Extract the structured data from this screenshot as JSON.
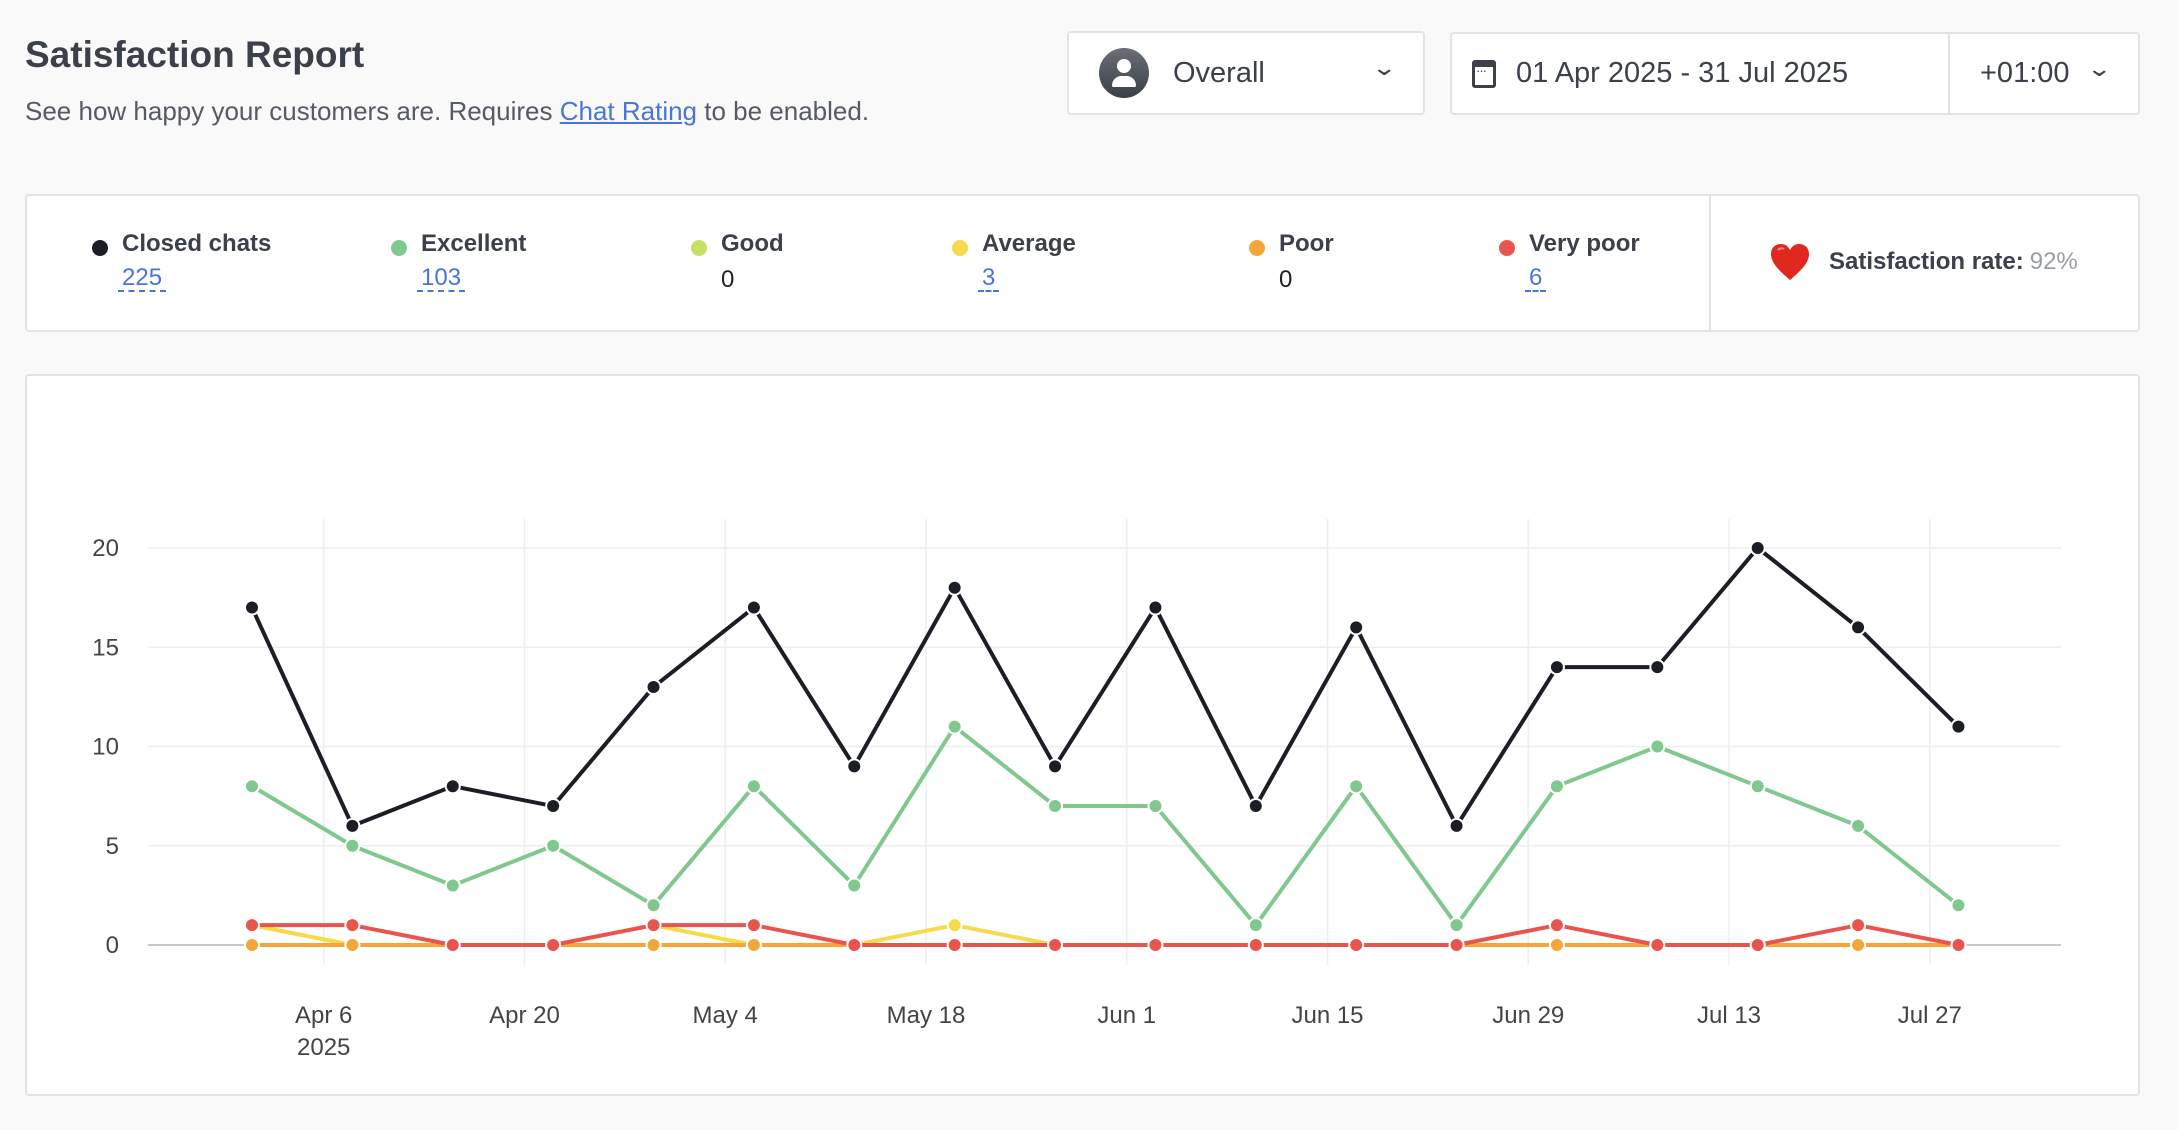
{
  "header": {
    "title": "Satisfaction Report",
    "subtitle_before": "See how happy your customers are. Requires ",
    "subtitle_link": "Chat Rating",
    "subtitle_after": " to be enabled."
  },
  "filters": {
    "agent": "Overall",
    "date_range": "01 Apr 2025 - 31 Jul 2025",
    "timezone": "+01:00"
  },
  "stats": [
    {
      "label": "Closed chats",
      "value": "225",
      "link": true,
      "color": "#1c1e26"
    },
    {
      "label": "Excellent",
      "value": "103",
      "link": true,
      "color": "#80c88e"
    },
    {
      "label": "Good",
      "value": "0",
      "link": false,
      "color": "#c5e063"
    },
    {
      "label": "Average",
      "value": "3",
      "link": true,
      "color": "#f7da4b"
    },
    {
      "label": "Poor",
      "value": "0",
      "link": false,
      "color": "#f3a73b"
    },
    {
      "label": "Very poor",
      "value": "6",
      "link": true,
      "color": "#e8554e"
    }
  ],
  "satisfaction": {
    "label": "Satisfaction rate:",
    "value": "92%",
    "icon": "heart-icon"
  },
  "chart_data": {
    "type": "line",
    "x": [
      "2025-04-01",
      "2025-04-08",
      "2025-04-15",
      "2025-04-22",
      "2025-04-29",
      "2025-05-06",
      "2025-05-13",
      "2025-05-20",
      "2025-05-27",
      "2025-06-03",
      "2025-06-10",
      "2025-06-17",
      "2025-06-24",
      "2025-07-01",
      "2025-07-08",
      "2025-07-15",
      "2025-07-22",
      "2025-07-29"
    ],
    "x_ticks": [
      "Apr 6",
      "Apr 20",
      "May 4",
      "May 18",
      "Jun 1",
      "Jun 15",
      "Jun 29",
      "Jul 13",
      "Jul 27"
    ],
    "x_tick_dates": [
      "2025-04-06",
      "2025-04-20",
      "2025-05-04",
      "2025-05-18",
      "2025-06-01",
      "2025-06-15",
      "2025-06-29",
      "2025-07-13",
      "2025-07-27"
    ],
    "x_year_label": "2025",
    "y_ticks": [
      0,
      5,
      10,
      15,
      20
    ],
    "ylim": [
      0,
      20
    ],
    "grid": true,
    "series": [
      {
        "name": "Closed chats",
        "color": "#1c1e26",
        "values": [
          17,
          6,
          8,
          7,
          13,
          17,
          9,
          18,
          9,
          17,
          7,
          16,
          6,
          14,
          14,
          20,
          16,
          11
        ]
      },
      {
        "name": "Excellent",
        "color": "#80c88e",
        "values": [
          8,
          5,
          3,
          5,
          2,
          8,
          3,
          11,
          7,
          7,
          1,
          8,
          1,
          8,
          10,
          8,
          6,
          2
        ]
      },
      {
        "name": "Good",
        "color": "#c5e063",
        "values": [
          0,
          0,
          0,
          0,
          0,
          0,
          0,
          0,
          0,
          0,
          0,
          0,
          0,
          0,
          0,
          0,
          0,
          0
        ]
      },
      {
        "name": "Average",
        "color": "#f7da4b",
        "values": [
          1,
          0,
          0,
          0,
          1,
          0,
          0,
          1,
          0,
          0,
          0,
          0,
          0,
          0,
          0,
          0,
          0,
          0
        ]
      },
      {
        "name": "Poor",
        "color": "#f3a73b",
        "values": [
          0,
          0,
          0,
          0,
          0,
          0,
          0,
          0,
          0,
          0,
          0,
          0,
          0,
          0,
          0,
          0,
          0,
          0
        ]
      },
      {
        "name": "Very poor",
        "color": "#e8554e",
        "values": [
          1,
          1,
          0,
          0,
          1,
          1,
          0,
          0,
          0,
          0,
          0,
          0,
          0,
          1,
          0,
          0,
          1,
          0
        ]
      }
    ]
  }
}
